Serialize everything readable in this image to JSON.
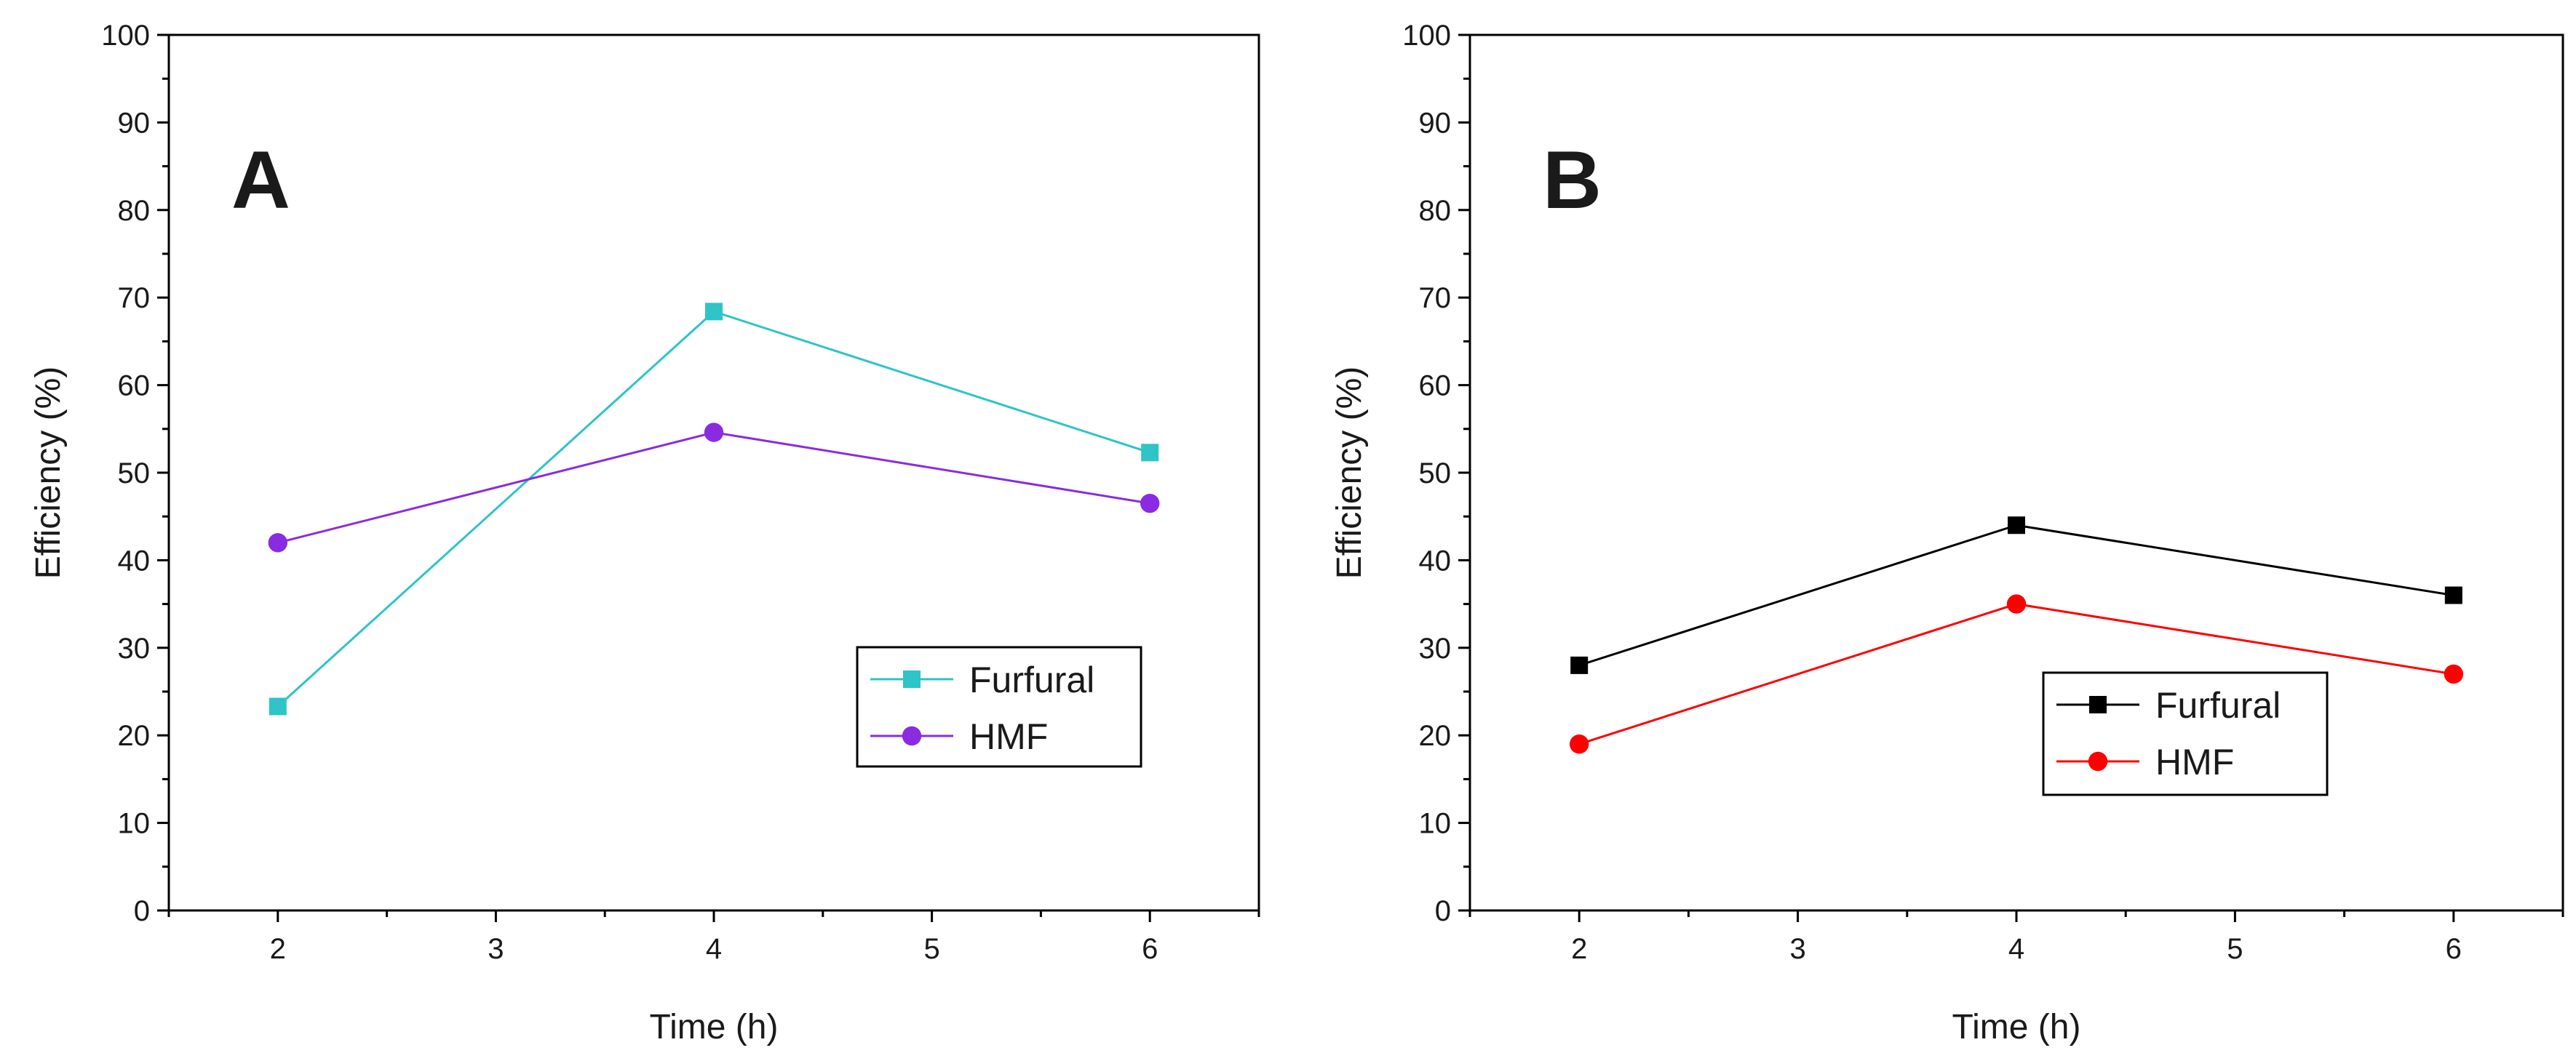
{
  "chart_data": [
    {
      "type": "line",
      "panel_label": "A",
      "xlabel": "Time (h)",
      "ylabel": "Efficiency (%)",
      "xlim": [
        1.5,
        6.5
      ],
      "ylim": [
        0,
        100
      ],
      "xticks": [
        2,
        3,
        4,
        5,
        6
      ],
      "yticks": [
        0,
        10,
        20,
        30,
        40,
        50,
        60,
        70,
        80,
        90,
        100
      ],
      "legend_position": "lower-right",
      "series": [
        {
          "name": "Furfural",
          "marker": "square",
          "color": "#2ec4c8",
          "x": [
            2,
            4,
            6
          ],
          "values": [
            23.3,
            68.4,
            52.3
          ]
        },
        {
          "name": "HMF",
          "marker": "circle",
          "color": "#8a2be2",
          "x": [
            2,
            4,
            6
          ],
          "values": [
            42.0,
            54.6,
            46.5
          ]
        }
      ]
    },
    {
      "type": "line",
      "panel_label": "B",
      "xlabel": "Time (h)",
      "ylabel": "Efficiency (%)",
      "xlim": [
        1.5,
        6.5
      ],
      "ylim": [
        0,
        100
      ],
      "xticks": [
        2,
        3,
        4,
        5,
        6
      ],
      "yticks": [
        0,
        10,
        20,
        30,
        40,
        50,
        60,
        70,
        80,
        90,
        100
      ],
      "legend_position": "lower-center",
      "series": [
        {
          "name": "Furfural",
          "marker": "square",
          "color": "#000000",
          "x": [
            2,
            4,
            6
          ],
          "values": [
            28.0,
            44.0,
            36.0
          ]
        },
        {
          "name": "HMF",
          "marker": "circle",
          "color": "#ff0000",
          "x": [
            2,
            4,
            6
          ],
          "values": [
            19.0,
            35.0,
            27.0
          ]
        }
      ]
    }
  ]
}
